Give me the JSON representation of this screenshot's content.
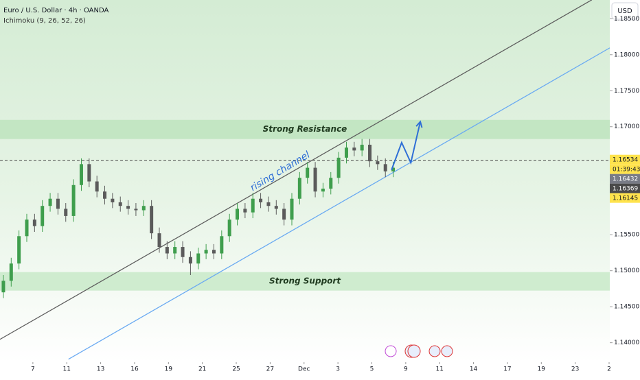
{
  "chart_data": {
    "type": "candlestick",
    "title": "Euro / U.S. Dollar · 4h · OANDA",
    "subtitle": "Ichimoku (9, 26, 52, 26)",
    "currency": "USD",
    "annotation": "rising channel",
    "up_color": "#3f9e4d",
    "down_color": "#5b5b5b",
    "xlim": [
      -0.97,
      17.02
    ],
    "ylim": [
      1.1373,
      1.1876
    ],
    "xticks": [
      {
        "value": 0,
        "label": "7"
      },
      {
        "value": 1,
        "label": "11"
      },
      {
        "value": 2,
        "label": "13"
      },
      {
        "value": 3,
        "label": "16"
      },
      {
        "value": 4,
        "label": "19"
      },
      {
        "value": 5,
        "label": "21"
      },
      {
        "value": 6,
        "label": "25"
      },
      {
        "value": 7,
        "label": "27"
      },
      {
        "value": 8,
        "label": "Dec"
      },
      {
        "value": 9,
        "label": "3"
      },
      {
        "value": 10,
        "label": "5"
      },
      {
        "value": 11,
        "label": "9"
      },
      {
        "value": 12,
        "label": "11"
      },
      {
        "value": 13,
        "label": "14"
      },
      {
        "value": 14,
        "label": "17"
      },
      {
        "value": 15,
        "label": "19"
      },
      {
        "value": 16,
        "label": "23"
      },
      {
        "value": 17,
        "label": "2"
      }
    ],
    "yticks": [
      {
        "value": 1.185,
        "label": "1.18500"
      },
      {
        "value": 1.18,
        "label": "1.18000"
      },
      {
        "value": 1.175,
        "label": "1.17500"
      },
      {
        "value": 1.17,
        "label": "1.17000"
      },
      {
        "value": 1.165,
        "label": "1.16500"
      },
      {
        "value": 1.16,
        "label": "1.16000"
      },
      {
        "value": 1.155,
        "label": "1.15500"
      },
      {
        "value": 1.15,
        "label": "1.15000"
      },
      {
        "value": 1.145,
        "label": "1.14500"
      },
      {
        "value": 1.14,
        "label": "1.14000"
      }
    ],
    "x": [
      -0.87,
      -0.64,
      -0.41,
      -0.18,
      0.05,
      0.28,
      0.51,
      0.74,
      0.97,
      1.2,
      1.43,
      1.66,
      1.89,
      2.12,
      2.35,
      2.58,
      2.81,
      3.04,
      3.27,
      3.5,
      3.73,
      3.96,
      4.19,
      4.42,
      4.65,
      4.88,
      5.11,
      5.34,
      5.57,
      5.8,
      6.03,
      6.26,
      6.49,
      6.72,
      6.95,
      7.18,
      7.41,
      7.64,
      7.87,
      8.1,
      8.33,
      8.56,
      8.79,
      9.02,
      9.25,
      9.48,
      9.71,
      9.94,
      10.17,
      10.4,
      10.63
    ],
    "open": [
      1.147,
      1.1486,
      1.151,
      1.1548,
      1.1571,
      1.1562,
      1.159,
      1.16,
      1.1586,
      1.1576,
      1.1619,
      1.1648,
      1.1624,
      1.161,
      1.16,
      1.1595,
      1.159,
      1.1586,
      1.1584,
      1.159,
      1.1552,
      1.1533,
      1.1524,
      1.1533,
      1.1519,
      1.151,
      1.1524,
      1.1529,
      1.1524,
      1.1548,
      1.1571,
      1.1586,
      1.1581,
      1.16,
      1.1595,
      1.159,
      1.1586,
      1.1571,
      1.16,
      1.1629,
      1.1643,
      1.161,
      1.1614,
      1.1629,
      1.1657,
      1.1671,
      1.1667,
      1.1675,
      1.1652,
      1.1648,
      1.1638
    ],
    "high": [
      1.1494,
      1.1518,
      1.1556,
      1.1579,
      1.1579,
      1.1598,
      1.1608,
      1.1608,
      1.1594,
      1.1627,
      1.1656,
      1.1656,
      1.1632,
      1.1618,
      1.1608,
      1.1603,
      1.1598,
      1.1594,
      1.1598,
      1.1598,
      1.156,
      1.1541,
      1.1541,
      1.1541,
      1.1527,
      1.1532,
      1.1537,
      1.1537,
      1.1556,
      1.1579,
      1.1594,
      1.1594,
      1.1608,
      1.1608,
      1.1603,
      1.1598,
      1.1594,
      1.1608,
      1.1637,
      1.1651,
      1.1651,
      1.1622,
      1.1637,
      1.1665,
      1.1679,
      1.1679,
      1.1683,
      1.1683,
      1.166,
      1.1656,
      1.1651
    ],
    "low": [
      1.1462,
      1.1478,
      1.1502,
      1.154,
      1.1554,
      1.1554,
      1.1582,
      1.1578,
      1.1568,
      1.1568,
      1.1611,
      1.1616,
      1.1602,
      1.1592,
      1.1587,
      1.1582,
      1.1578,
      1.1576,
      1.1576,
      1.1544,
      1.1525,
      1.1516,
      1.1516,
      1.1511,
      1.1494,
      1.1502,
      1.1516,
      1.1516,
      1.1516,
      1.154,
      1.1563,
      1.1573,
      1.1573,
      1.1587,
      1.1582,
      1.1578,
      1.1563,
      1.1563,
      1.1592,
      1.1621,
      1.1602,
      1.1602,
      1.1606,
      1.1621,
      1.1649,
      1.1659,
      1.1659,
      1.1644,
      1.164,
      1.163,
      1.163
    ],
    "close": [
      1.1486,
      1.151,
      1.1548,
      1.1571,
      1.1562,
      1.159,
      1.16,
      1.1586,
      1.1576,
      1.1619,
      1.1648,
      1.1624,
      1.161,
      1.16,
      1.1595,
      1.159,
      1.1586,
      1.1584,
      1.159,
      1.1552,
      1.1533,
      1.1524,
      1.1533,
      1.1519,
      1.151,
      1.1524,
      1.1529,
      1.1524,
      1.1548,
      1.1571,
      1.1586,
      1.1581,
      1.16,
      1.1595,
      1.159,
      1.1586,
      1.1571,
      1.16,
      1.1629,
      1.1643,
      1.161,
      1.1614,
      1.1629,
      1.1657,
      1.1671,
      1.1667,
      1.1675,
      1.1652,
      1.1648,
      1.1638,
      1.1643
    ],
    "zones": [
      {
        "label": "Strong Resistance",
        "range": [
          1.16829,
          1.17095
        ],
        "color": "#c3e6c3"
      },
      {
        "label": "Strong Support",
        "range": [
          1.14724,
          1.14981
        ],
        "color": "#cfeccf"
      }
    ],
    "trend_lines": [
      {
        "color": "#5f5f5f",
        "points": [
          [
            -0.97,
            1.14047
          ],
          [
            16.49,
            1.18762
          ]
        ]
      },
      {
        "color": "#6aaaf2",
        "points": [
          [
            1.05,
            1.13771
          ],
          [
            17.02,
            1.18095
          ]
        ]
      }
    ],
    "projection": {
      "color": "#2f6fd6",
      "points": [
        [
          10.58,
          1.164
        ],
        [
          10.88,
          1.1678
        ],
        [
          11.15,
          1.165
        ],
        [
          11.43,
          1.1707
        ]
      ]
    },
    "current_price": 1.16534,
    "countdown": "01:39:43",
    "price_tags": [
      {
        "value": 1.16432,
        "color": "#787b86"
      },
      {
        "value": 1.16369,
        "color": "#4a4a4a"
      },
      {
        "value": 1.16145,
        "color": "#ffe34d"
      }
    ]
  }
}
